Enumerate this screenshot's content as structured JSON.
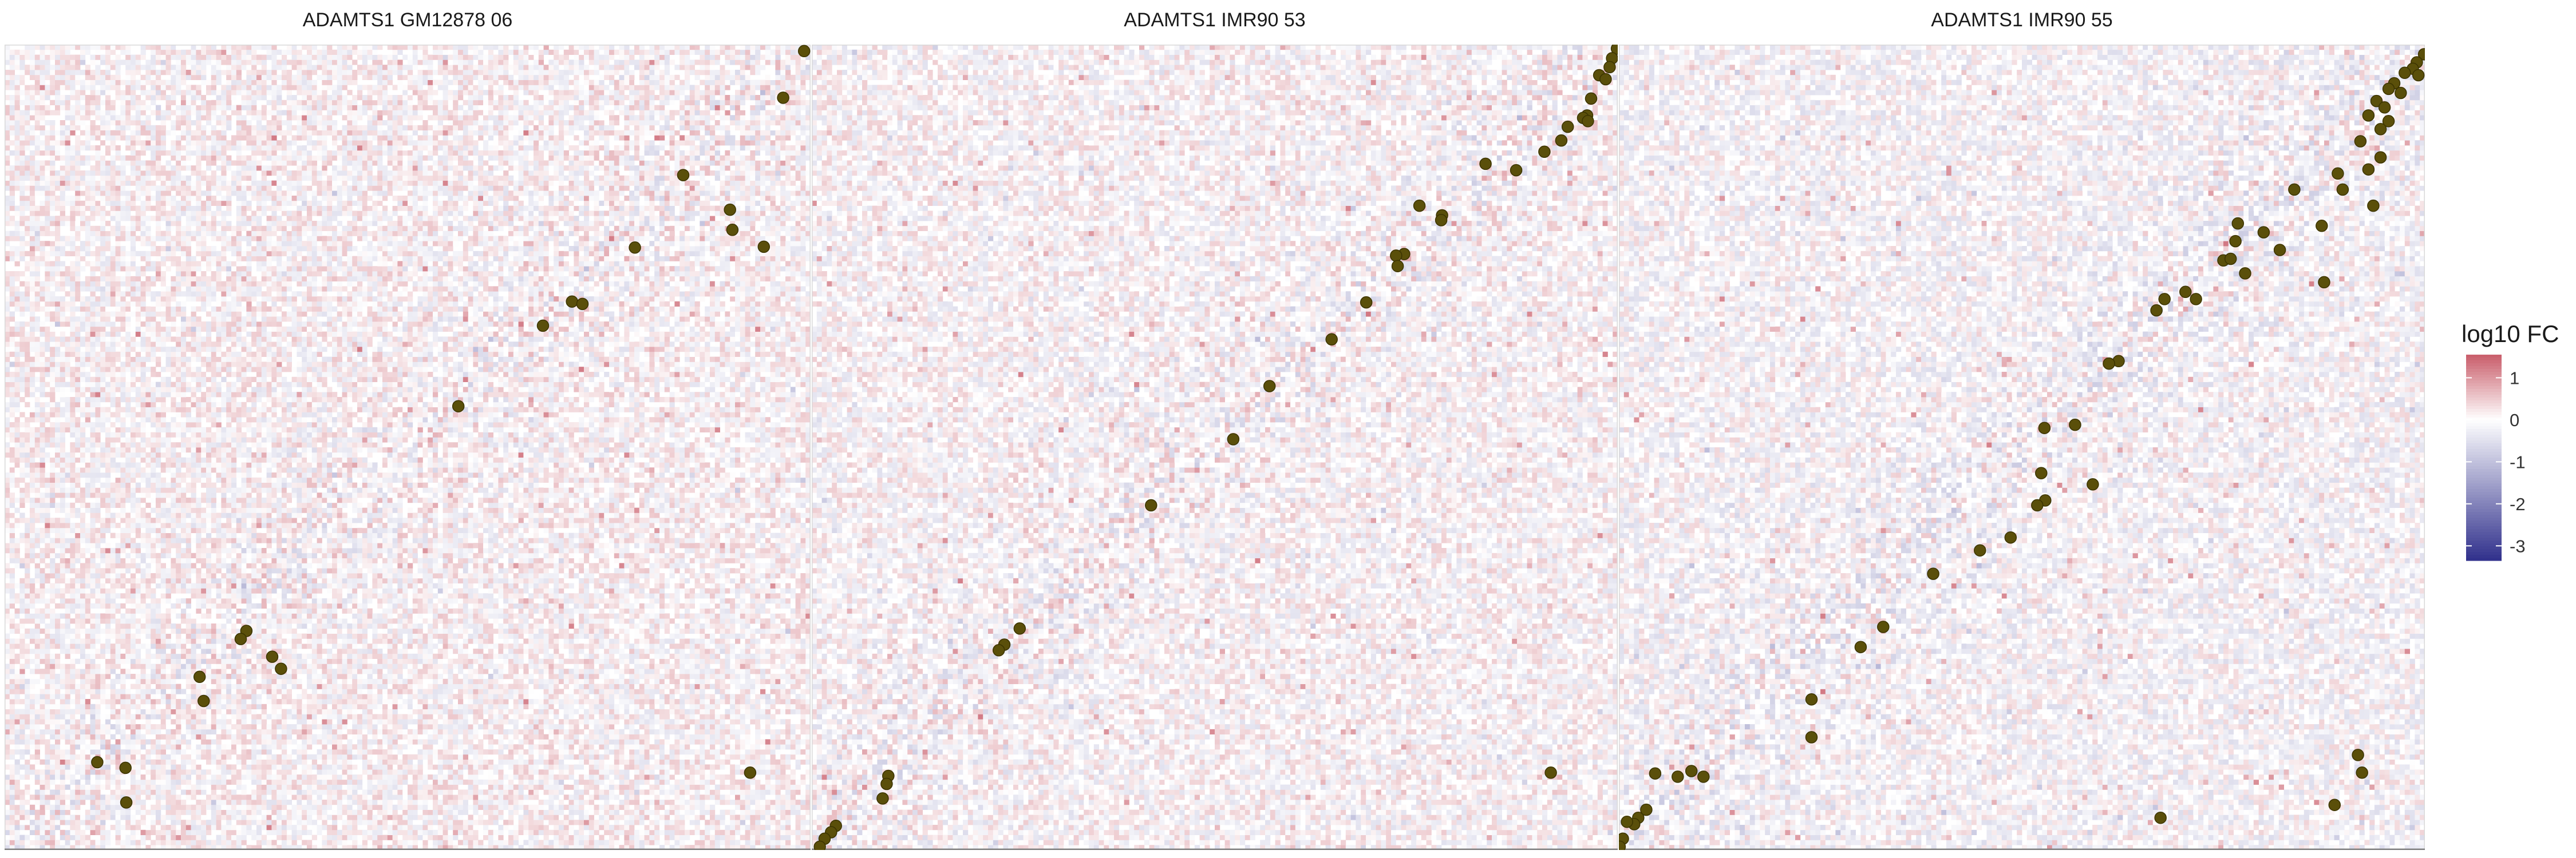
{
  "chart_data": [
    {
      "type": "heatmap",
      "title": "ADAMTS1 GM12878 06",
      "seed": 11,
      "bias": 0.05,
      "points": [
        [
          0.992,
          0.992
        ],
        [
          0.966,
          0.934
        ],
        [
          0.842,
          0.838
        ],
        [
          0.9,
          0.795
        ],
        [
          0.903,
          0.77
        ],
        [
          0.942,
          0.749
        ],
        [
          0.782,
          0.748
        ],
        [
          0.704,
          0.681
        ],
        [
          0.717,
          0.678
        ],
        [
          0.668,
          0.651
        ],
        [
          0.563,
          0.551
        ],
        [
          0.3,
          0.272
        ],
        [
          0.293,
          0.262
        ],
        [
          0.332,
          0.24
        ],
        [
          0.343,
          0.225
        ],
        [
          0.242,
          0.215
        ],
        [
          0.247,
          0.185
        ],
        [
          0.115,
          0.109
        ],
        [
          0.15,
          0.102
        ],
        [
          0.925,
          0.096
        ],
        [
          0.151,
          0.059
        ]
      ]
    },
    {
      "type": "heatmap",
      "title": "ADAMTS1 IMR90 53",
      "seed": 29,
      "bias": 0.0,
      "points": [
        [
          0.999,
          0.995
        ],
        [
          0.993,
          0.983
        ],
        [
          0.99,
          0.972
        ],
        [
          0.977,
          0.962
        ],
        [
          0.985,
          0.957
        ],
        [
          0.967,
          0.933
        ],
        [
          0.962,
          0.912
        ],
        [
          0.957,
          0.909
        ],
        [
          0.963,
          0.905
        ],
        [
          0.938,
          0.898
        ],
        [
          0.93,
          0.881
        ],
        [
          0.909,
          0.867
        ],
        [
          0.874,
          0.844
        ],
        [
          0.836,
          0.852
        ],
        [
          0.754,
          0.8
        ],
        [
          0.782,
          0.788
        ],
        [
          0.781,
          0.782
        ],
        [
          0.735,
          0.74
        ],
        [
          0.725,
          0.738
        ],
        [
          0.727,
          0.725
        ],
        [
          0.688,
          0.68
        ],
        [
          0.645,
          0.634
        ],
        [
          0.568,
          0.576
        ],
        [
          0.523,
          0.51
        ],
        [
          0.421,
          0.428
        ],
        [
          0.258,
          0.275
        ],
        [
          0.239,
          0.255
        ],
        [
          0.232,
          0.248
        ],
        [
          0.917,
          0.096
        ],
        [
          0.095,
          0.092
        ],
        [
          0.093,
          0.082
        ],
        [
          0.088,
          0.064
        ],
        [
          0.03,
          0.03
        ],
        [
          0.024,
          0.022
        ],
        [
          0.016,
          0.014
        ],
        [
          0.01,
          0.004
        ]
      ]
    },
    {
      "type": "heatmap",
      "title": "ADAMTS1 IMR90 55",
      "seed": 47,
      "bias": -0.08,
      "points": [
        [
          0.999,
          0.988
        ],
        [
          0.99,
          0.978
        ],
        [
          0.985,
          0.97
        ],
        [
          0.992,
          0.962
        ],
        [
          0.975,
          0.965
        ],
        [
          0.962,
          0.952
        ],
        [
          0.955,
          0.945
        ],
        [
          0.97,
          0.94
        ],
        [
          0.94,
          0.93
        ],
        [
          0.95,
          0.922
        ],
        [
          0.93,
          0.912
        ],
        [
          0.955,
          0.905
        ],
        [
          0.945,
          0.895
        ],
        [
          0.92,
          0.88
        ],
        [
          0.945,
          0.86
        ],
        [
          0.93,
          0.845
        ],
        [
          0.892,
          0.84
        ],
        [
          0.898,
          0.82
        ],
        [
          0.936,
          0.8
        ],
        [
          0.838,
          0.82
        ],
        [
          0.872,
          0.775
        ],
        [
          0.8,
          0.767
        ],
        [
          0.768,
          0.778
        ],
        [
          0.765,
          0.756
        ],
        [
          0.75,
          0.732
        ],
        [
          0.82,
          0.745
        ],
        [
          0.777,
          0.716
        ],
        [
          0.759,
          0.734
        ],
        [
          0.875,
          0.705
        ],
        [
          0.703,
          0.693
        ],
        [
          0.677,
          0.684
        ],
        [
          0.716,
          0.684
        ],
        [
          0.667,
          0.67
        ],
        [
          0.62,
          0.607
        ],
        [
          0.608,
          0.604
        ],
        [
          0.566,
          0.528
        ],
        [
          0.528,
          0.524
        ],
        [
          0.588,
          0.454
        ],
        [
          0.529,
          0.434
        ],
        [
          0.524,
          0.468
        ],
        [
          0.519,
          0.428
        ],
        [
          0.486,
          0.388
        ],
        [
          0.448,
          0.372
        ],
        [
          0.39,
          0.343
        ],
        [
          0.328,
          0.277
        ],
        [
          0.3,
          0.252
        ],
        [
          0.239,
          0.187
        ],
        [
          0.239,
          0.14
        ],
        [
          0.105,
          0.091
        ],
        [
          0.09,
          0.098
        ],
        [
          0.073,
          0.091
        ],
        [
          0.917,
          0.118
        ],
        [
          0.922,
          0.096
        ],
        [
          0.888,
          0.056
        ],
        [
          0.672,
          0.04
        ],
        [
          0.045,
          0.095
        ],
        [
          0.034,
          0.05
        ],
        [
          0.024,
          0.04
        ],
        [
          0.019,
          0.032
        ],
        [
          0.01,
          0.035
        ],
        [
          0.005,
          0.014
        ],
        [
          0.001,
          0.004
        ]
      ]
    }
  ],
  "legend": {
    "title": "log10 FC",
    "ticks": [
      1,
      0,
      -1,
      -2,
      -3
    ],
    "range": [
      1.55,
      -3.35
    ],
    "colors": {
      "high": "#b2182b",
      "mid": "#ffffff",
      "low": "#2d2d8a"
    }
  },
  "colors": {
    "point_fill": "#5a4f0a",
    "point_stroke": "#3b3300"
  }
}
